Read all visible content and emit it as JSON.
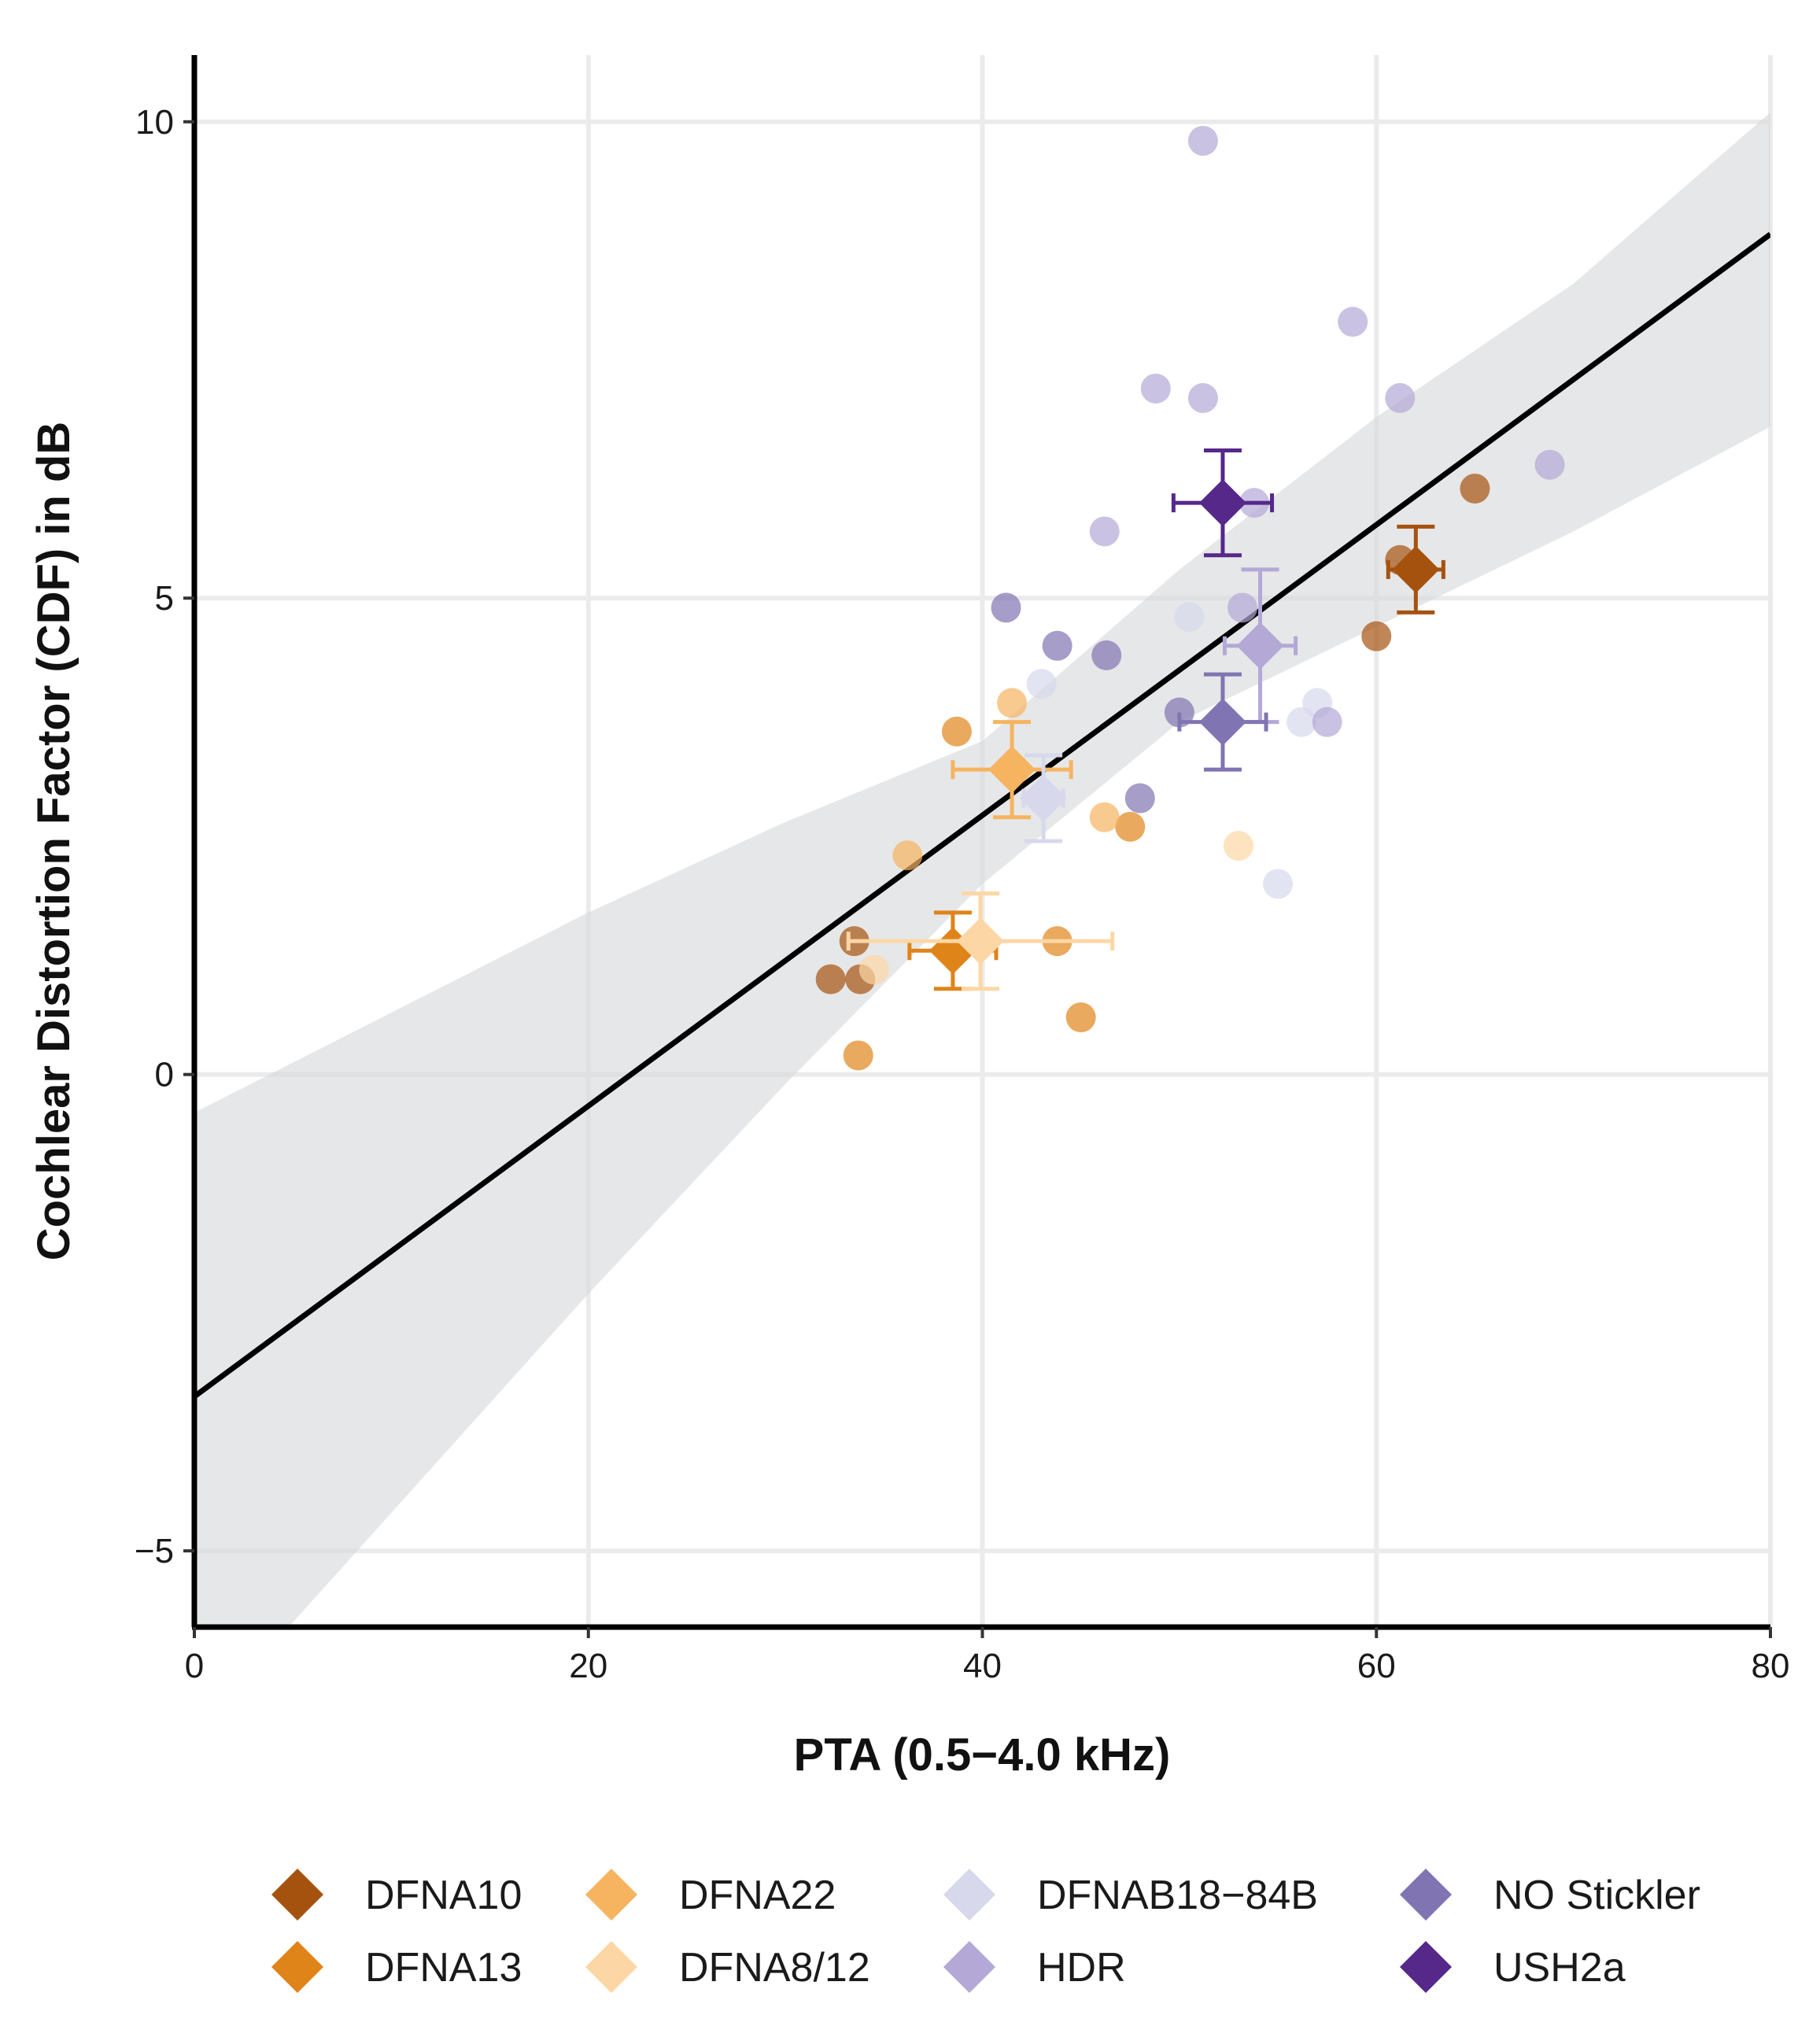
{
  "chart_data": {
    "type": "scatter",
    "title": "",
    "xlabel": "PTA (0.5−4.0 kHz)",
    "ylabel": "Cochlear Distortion Factor (CDF) in dB",
    "xlim": [
      0,
      80
    ],
    "ylim": [
      -5.8,
      10.7
    ],
    "x_ticks": [
      {
        "value": 0,
        "label": "0"
      },
      {
        "value": 20,
        "label": "20"
      },
      {
        "value": 40,
        "label": "40"
      },
      {
        "value": 60,
        "label": "60"
      },
      {
        "value": 80,
        "label": "80"
      }
    ],
    "y_ticks": [
      {
        "value": -5,
        "label": "−5"
      },
      {
        "value": 0,
        "label": "0"
      },
      {
        "value": 5,
        "label": "5"
      },
      {
        "value": 10,
        "label": "10"
      }
    ],
    "grid": true,
    "legend_position": "bottom",
    "colors": {
      "regression_line": "#000000",
      "confidence_band": "#d9dadb",
      "grid": "#ebebeb",
      "axis": "#000000"
    },
    "regression": {
      "intercept": -3.38,
      "slope": 0.1525,
      "ci": [
        {
          "x": 0,
          "lower": -6.9,
          "upper": -0.4
        },
        {
          "x": 10,
          "lower": -4.6,
          "upper": 0.65
        },
        {
          "x": 20,
          "lower": -2.3,
          "upper": 1.7
        },
        {
          "x": 30,
          "lower": -0.1,
          "upper": 2.65
        },
        {
          "x": 40,
          "lower": 2.0,
          "upper": 3.5
        },
        {
          "x": 50,
          "lower": 3.7,
          "upper": 5.3
        },
        {
          "x": 60,
          "lower": 4.7,
          "upper": 6.9
        },
        {
          "x": 70,
          "lower": 5.7,
          "upper": 8.3
        },
        {
          "x": 80,
          "lower": 6.8,
          "upper": 10.1
        }
      ]
    },
    "series": [
      {
        "name": "DFNA10",
        "color": "#a6520f",
        "points": [
          [
            61.2,
            5.4
          ],
          [
            65,
            6.15
          ],
          [
            60,
            4.6
          ],
          [
            33.5,
            1.4
          ],
          [
            32.3,
            1.0
          ],
          [
            33.8,
            1.0
          ]
        ],
        "mean": {
          "x": 62,
          "y": 5.3,
          "x_err": 1.4,
          "y_err": 0.45
        }
      },
      {
        "name": "DFNA13",
        "color": "#df8419",
        "points": [
          [
            43.8,
            1.4
          ],
          [
            45,
            0.6
          ],
          [
            47.5,
            2.6
          ],
          [
            33.7,
            0.2
          ],
          [
            38.7,
            3.6
          ]
        ],
        "mean": {
          "x": 38.5,
          "y": 1.3,
          "x_err": 2.2,
          "y_err": 0.4
        }
      },
      {
        "name": "DFNA22",
        "color": "#f6b461",
        "points": [
          [
            36.2,
            2.3
          ],
          [
            46.2,
            2.7
          ],
          [
            41.5,
            3.9
          ]
        ],
        "mean": {
          "x": 41.5,
          "y": 3.2,
          "x_err": 3.0,
          "y_err": 0.5
        }
      },
      {
        "name": "DFNA8/12",
        "color": "#fcd7a5",
        "points": [
          [
            53,
            2.4
          ],
          [
            34.5,
            1.1
          ]
        ],
        "mean": {
          "x": 39.9,
          "y": 1.4,
          "x_err": 6.7,
          "y_err": 0.5
        }
      },
      {
        "name": "DFNAB18−84B",
        "color": "#d7d8ec",
        "points": [
          [
            43,
            4.1
          ],
          [
            55,
            2.0
          ],
          [
            50.5,
            4.8
          ],
          [
            57,
            3.9
          ],
          [
            56.2,
            3.7
          ]
        ],
        "mean": {
          "x": 43.1,
          "y": 2.9,
          "x_err": 1.0,
          "y_err": 0.45
        }
      },
      {
        "name": "HDR",
        "color": "#b4a8d6",
        "points": [
          [
            46.2,
            5.7
          ],
          [
            51.2,
            9.8
          ],
          [
            48.8,
            7.2
          ],
          [
            51.2,
            7.1
          ],
          [
            58.8,
            7.9
          ],
          [
            61.2,
            7.1
          ],
          [
            68.8,
            6.4
          ],
          [
            53.8,
            6.0
          ],
          [
            53.2,
            4.9
          ],
          [
            57.5,
            3.7
          ]
        ],
        "mean": {
          "x": 54.1,
          "y": 4.5,
          "x_err": 1.8,
          "y_err": 0.8
        }
      },
      {
        "name": "NO Stickler",
        "color": "#8074b2",
        "points": [
          [
            41.2,
            4.9
          ],
          [
            43.8,
            4.5
          ],
          [
            46.3,
            4.4
          ],
          [
            48,
            2.9
          ],
          [
            50,
            3.8
          ]
        ],
        "mean": {
          "x": 52.2,
          "y": 3.7,
          "x_err": 2.2,
          "y_err": 0.5
        }
      },
      {
        "name": "USH2a",
        "color": "#55288a",
        "points": [],
        "mean": {
          "x": 52.2,
          "y": 6.0,
          "x_err": 2.5,
          "y_err": 0.55
        }
      }
    ]
  }
}
